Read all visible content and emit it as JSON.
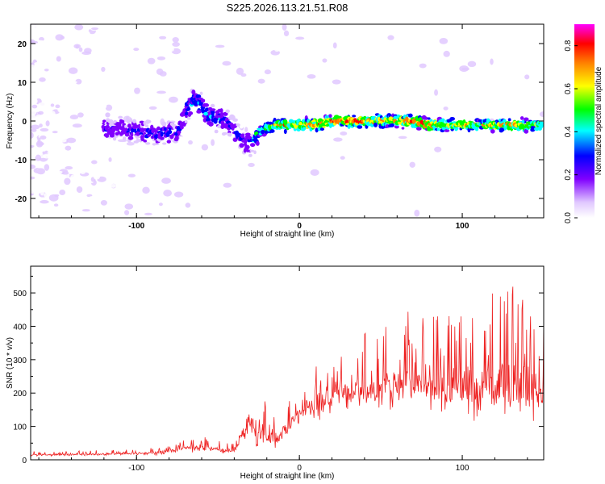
{
  "title": "S225.2026.113.21.51.R08",
  "chart_data": [
    {
      "type": "heatmap",
      "title": "S225.2026.113.21.51.R08",
      "xlabel": "Height of straight line (km)",
      "ylabel": "Frequency (Hz)",
      "xlim": [
        -165,
        150
      ],
      "ylim": [
        -25,
        25
      ],
      "x_ticks": [
        -100,
        0,
        100
      ],
      "y_ticks": [
        -20,
        -10,
        0,
        10,
        20
      ],
      "colorbar": {
        "label": "Normalized spectral amplitude",
        "range": [
          0.0,
          0.9
        ],
        "ticks": [
          0.0,
          0.2,
          0.4,
          0.6,
          0.8
        ],
        "colormap": [
          "#ffffff",
          "#e0c8ff",
          "#8000ff",
          "#0000ff",
          "#00ffff",
          "#00ff00",
          "#ffff00",
          "#ff8000",
          "#ff0000",
          "#ff00ff"
        ]
      },
      "ridge": {
        "x": [
          -110,
          -90,
          -75,
          -65,
          -55,
          -45,
          -35,
          -30,
          -25,
          -20,
          -15,
          -10,
          -5,
          0,
          10,
          20,
          30,
          40,
          50,
          60,
          70,
          80,
          90,
          100,
          110,
          120,
          130,
          140,
          148
        ],
        "freq": [
          -2,
          -3,
          -3,
          6,
          1,
          0,
          -5,
          -6,
          -3,
          -2,
          -1,
          -1,
          -1,
          -1,
          -1,
          0,
          0,
          0,
          0,
          0,
          0,
          -1,
          -1,
          -1,
          -1,
          -1,
          -1,
          -1,
          -1
        ],
        "amplitude": [
          0.3,
          0.35,
          0.35,
          0.4,
          0.4,
          0.35,
          0.3,
          0.35,
          0.5,
          0.6,
          0.7,
          0.75,
          0.7,
          0.75,
          0.8,
          0.8,
          0.85,
          0.8,
          0.75,
          0.7,
          0.85,
          0.8,
          0.7,
          0.7,
          0.65,
          0.7,
          0.75,
          0.7,
          0.6
        ]
      },
      "grid": false
    },
    {
      "type": "line",
      "xlabel": "Height of straight line (km)",
      "ylabel": "SNR (10 * v/v)",
      "xlim": [
        -165,
        150
      ],
      "ylim": [
        0,
        580
      ],
      "x_ticks": [
        -100,
        0,
        100
      ],
      "y_ticks": [
        0,
        100,
        200,
        300,
        400,
        500
      ],
      "color": "#ee2020",
      "envelope": {
        "x": [
          -165,
          -130,
          -100,
          -90,
          -80,
          -70,
          -60,
          -50,
          -40,
          -35,
          -30,
          -25,
          -20,
          -15,
          -10,
          -5,
          0,
          5,
          10,
          20,
          30,
          40,
          50,
          60,
          70,
          80,
          90,
          100,
          110,
          120,
          130,
          140,
          150
        ],
        "low": [
          10,
          10,
          12,
          12,
          15,
          18,
          20,
          15,
          12,
          40,
          40,
          20,
          30,
          20,
          20,
          60,
          100,
          120,
          100,
          110,
          120,
          120,
          110,
          120,
          120,
          100,
          110,
          100,
          90,
          100,
          80,
          70,
          60
        ],
        "high": [
          25,
          28,
          30,
          35,
          45,
          60,
          75,
          60,
          45,
          150,
          240,
          200,
          170,
          160,
          180,
          190,
          200,
          240,
          280,
          320,
          350,
          370,
          390,
          420,
          440,
          420,
          410,
          440,
          450,
          480,
          500,
          520,
          440
        ]
      },
      "grid": false
    }
  ]
}
